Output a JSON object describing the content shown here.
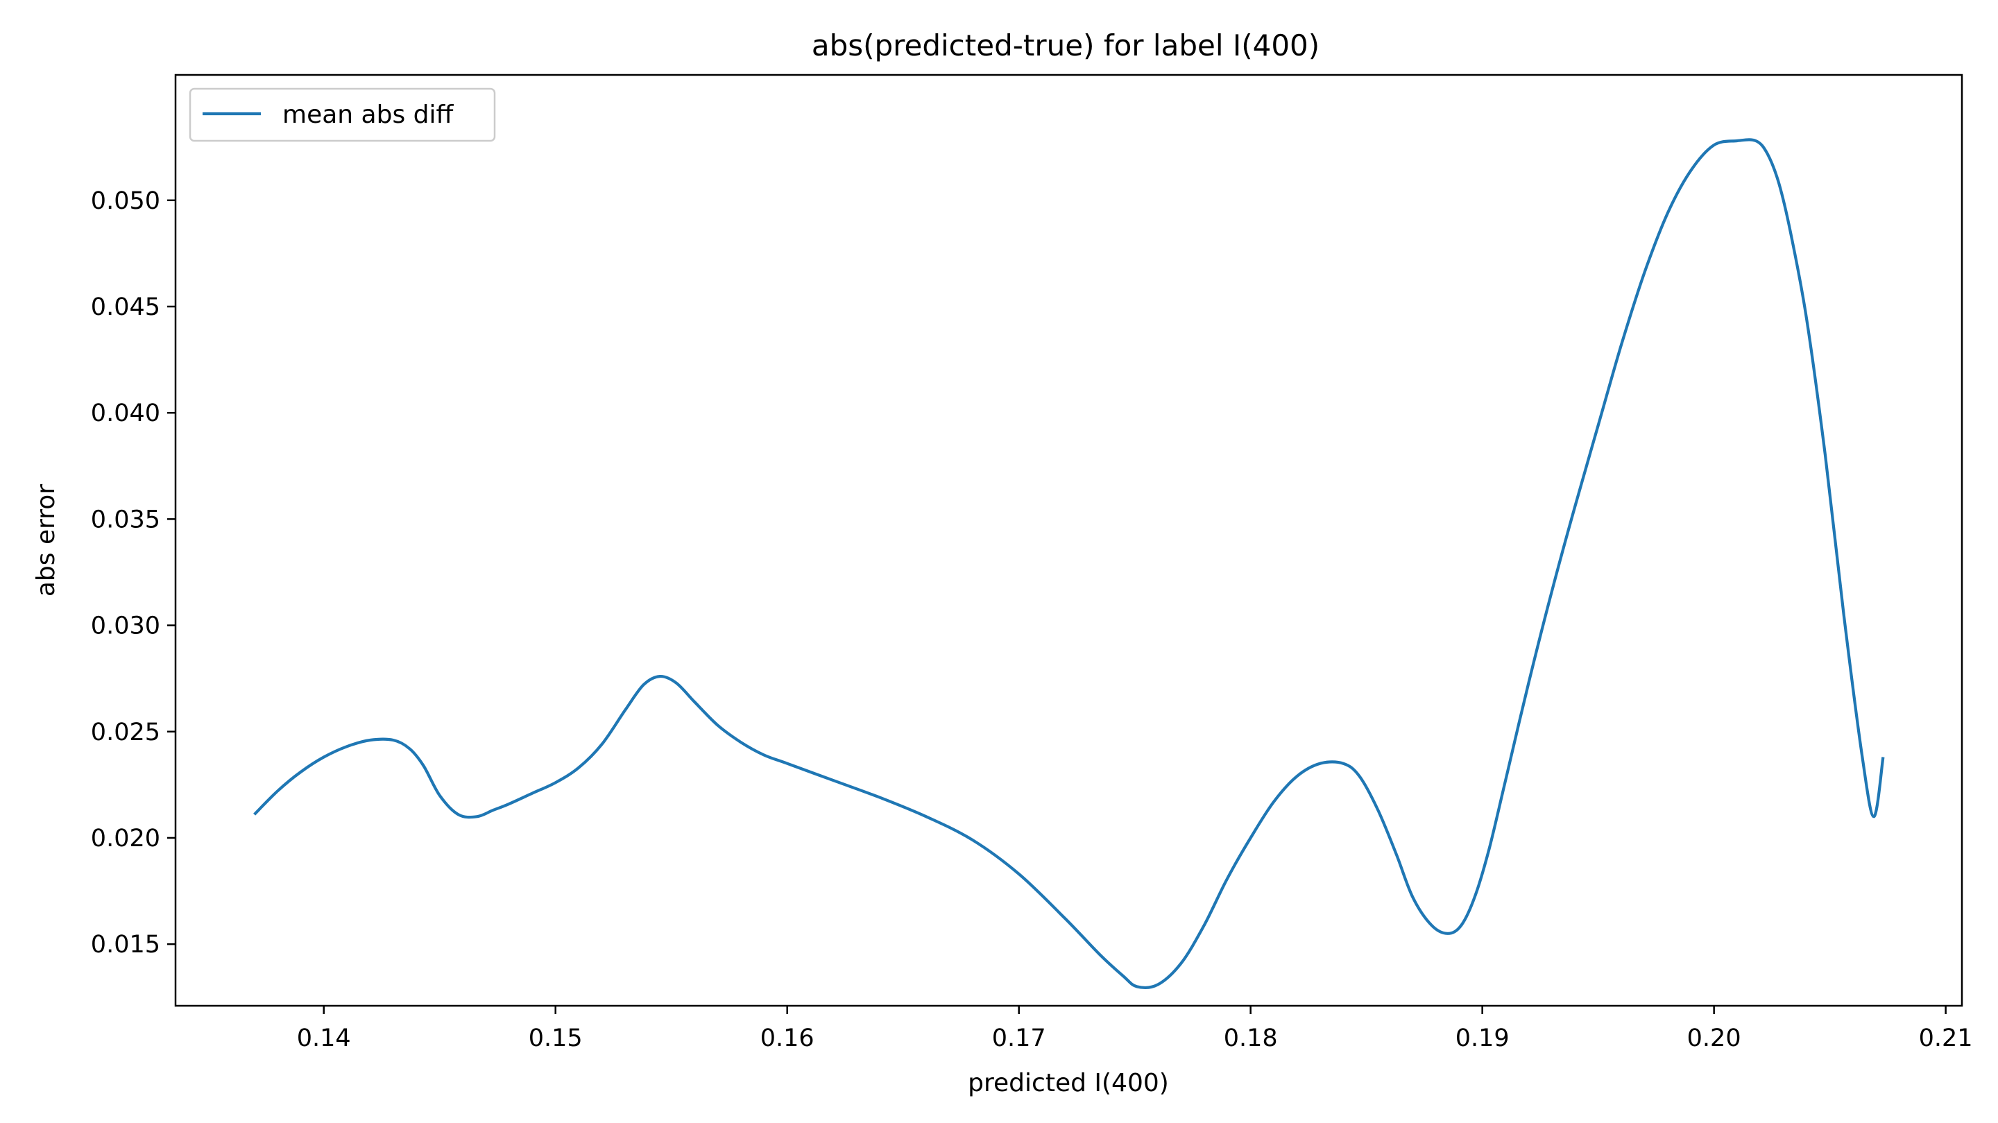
{
  "chart_data": {
    "type": "line",
    "title": "abs(predicted-true) for label I(400)",
    "xlabel": "predicted I(400)",
    "ylabel": "abs error",
    "xlim": [
      0.1336,
      0.2107
    ],
    "ylim": [
      0.0121,
      0.0559
    ],
    "xticks": [
      0.14,
      0.15,
      0.16,
      0.17,
      0.18,
      0.19,
      0.2,
      0.21
    ],
    "xtick_labels": [
      "0.14",
      "0.15",
      "0.16",
      "0.17",
      "0.18",
      "0.19",
      "0.20",
      "0.21"
    ],
    "yticks": [
      0.015,
      0.02,
      0.025,
      0.03,
      0.035,
      0.04,
      0.045,
      0.05
    ],
    "ytick_labels": [
      "0.015",
      "0.020",
      "0.025",
      "0.030",
      "0.035",
      "0.040",
      "0.045",
      "0.050"
    ],
    "grid": false,
    "legend_position": "top-left",
    "series": [
      {
        "name": "mean abs diff",
        "color": "#1f77b4",
        "x": [
          0.137,
          0.138,
          0.139,
          0.14,
          0.141,
          0.142,
          0.143,
          0.1437,
          0.1443,
          0.145,
          0.1458,
          0.1466,
          0.1473,
          0.148,
          0.149,
          0.15,
          0.151,
          0.152,
          0.153,
          0.1538,
          0.1545,
          0.1552,
          0.156,
          0.157,
          0.158,
          0.159,
          0.16,
          0.162,
          0.164,
          0.166,
          0.168,
          0.17,
          0.172,
          0.1735,
          0.1745,
          0.1751,
          0.176,
          0.177,
          0.178,
          0.179,
          0.18,
          0.181,
          0.182,
          0.183,
          0.184,
          0.1847,
          0.1855,
          0.1863,
          0.187,
          0.1878,
          0.1885,
          0.1891,
          0.1897,
          0.1903,
          0.191,
          0.192,
          0.193,
          0.194,
          0.195,
          0.196,
          0.197,
          0.198,
          0.199,
          0.2,
          0.201,
          0.2018,
          0.2023,
          0.2028,
          0.2033,
          0.204,
          0.2048,
          0.2056,
          0.2064,
          0.2069,
          0.2073
        ],
        "y": [
          0.0211,
          0.0222,
          0.0231,
          0.0238,
          0.0243,
          0.0246,
          0.0246,
          0.0242,
          0.0234,
          0.022,
          0.0211,
          0.021,
          0.0213,
          0.0216,
          0.0221,
          0.0226,
          0.0233,
          0.0244,
          0.026,
          0.0272,
          0.0276,
          0.0273,
          0.0264,
          0.0253,
          0.0245,
          0.0239,
          0.0235,
          0.0227,
          0.0219,
          0.021,
          0.0199,
          0.0183,
          0.0162,
          0.0145,
          0.0135,
          0.013,
          0.0131,
          0.0141,
          0.0159,
          0.0181,
          0.02,
          0.0217,
          0.0229,
          0.0235,
          0.0235,
          0.0229,
          0.0213,
          0.0192,
          0.0172,
          0.0159,
          0.0155,
          0.0159,
          0.0173,
          0.0195,
          0.0227,
          0.0273,
          0.0316,
          0.0356,
          0.0394,
          0.0432,
          0.0466,
          0.0494,
          0.0514,
          0.0526,
          0.0528,
          0.0528,
          0.0522,
          0.0508,
          0.0485,
          0.0444,
          0.038,
          0.0305,
          0.0238,
          0.021,
          0.0238
        ]
      }
    ]
  }
}
